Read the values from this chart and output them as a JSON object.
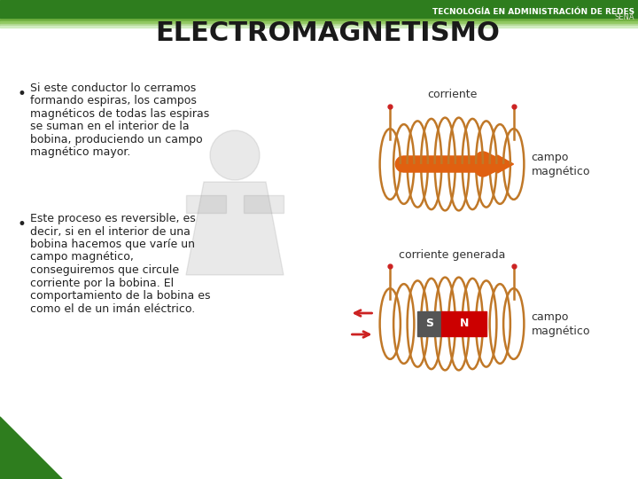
{
  "title": "ELECTROMAGNETISMO",
  "title_color": "#1a1a1a",
  "title_fontsize": 22,
  "title_fontweight": "bold",
  "bg_color": "#ffffff",
  "header_bar_color": "#2e7d1e",
  "header_bar_light_color": "#90c060",
  "header_text1": "TECNOLOGÍA EN ADMINISTRACIÓN DE REDES",
  "header_text2": "SENA",
  "header_text_color": "#ffffff",
  "sena_text_color": "#ddddcc",
  "bullet1_lines": [
    "Si este conductor lo cerramos",
    "formando espiras, los campos",
    "magnéticos de todas las espiras",
    "se suman en el interior de la",
    "bobina, produciendo un campo",
    "magnético mayor."
  ],
  "bullet2_lines": [
    "Este proceso es reversible, es",
    "decir, si en el interior de una",
    "bobina hacemos que varíe un",
    "campo magnético,",
    "conseguiremos que circule",
    "corriente por la bobina. El",
    "comportamiento de la bobina es",
    "como el de un imán eléctrico."
  ],
  "label_corriente1": "corriente",
  "label_campo1a": "campo",
  "label_campo1b": "magnético",
  "label_corriente2": "corriente generada",
  "label_campo2a": "campo",
  "label_campo2b": "magnético",
  "coil_color": "#c07828",
  "arrow_color": "#e06010",
  "magnet_S_color": "#555555",
  "magnet_N_color": "#cc0000",
  "magnet_text_color": "#ffffff",
  "left_triangle_color": "#2e7d1e",
  "text_fontsize": 9,
  "label_fontsize": 9
}
